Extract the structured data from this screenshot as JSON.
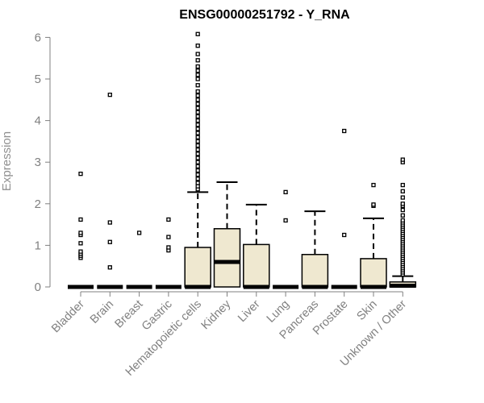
{
  "chart_data": {
    "type": "box",
    "title": "ENSG00000251792 - Y_RNA",
    "xlabel": "",
    "ylabel": "Expression",
    "ylim": [
      0,
      6.1
    ],
    "yticks": [
      0,
      1,
      2,
      3,
      4,
      5,
      6
    ],
    "colors": {
      "box_fill": "#efe8d0",
      "stroke": "#000000",
      "axis": "#808080"
    },
    "categories": [
      "Bladder",
      "Brain",
      "Breast",
      "Gastric",
      "Hematopoietic cells",
      "Kidney",
      "Liver",
      "Lung",
      "Pancreas",
      "Prostate",
      "Skin",
      "Unknown / Other"
    ],
    "boxes": [
      {
        "category": "Bladder",
        "q1": 0,
        "median": 0,
        "q3": 0,
        "whisker_low": 0,
        "whisker_high": 0,
        "outliers": [
          0.7,
          0.75,
          0.8,
          0.85,
          1.05,
          1.25,
          1.3,
          1.62,
          2.72
        ]
      },
      {
        "category": "Brain",
        "q1": 0,
        "median": 0,
        "q3": 0,
        "whisker_low": 0,
        "whisker_high": 0,
        "outliers": [
          0.47,
          1.08,
          1.55,
          4.62
        ]
      },
      {
        "category": "Breast",
        "q1": 0,
        "median": 0,
        "q3": 0,
        "whisker_low": 0,
        "whisker_high": 0,
        "outliers": [
          1.3
        ]
      },
      {
        "category": "Gastric",
        "q1": 0,
        "median": 0,
        "q3": 0,
        "whisker_low": 0,
        "whisker_high": 0,
        "outliers": [
          0.88,
          0.95,
          1.2,
          1.62
        ]
      },
      {
        "category": "Hematopoietic cells",
        "q1": 0,
        "median": 0,
        "q3": 0.95,
        "whisker_low": 0,
        "whisker_high": 2.28,
        "outliers": [
          2.35,
          2.42,
          2.5,
          2.6,
          2.7,
          2.8,
          2.9,
          3.0,
          3.1,
          3.2,
          3.3,
          3.4,
          3.5,
          3.6,
          3.7,
          3.8,
          3.9,
          4.0,
          4.1,
          4.2,
          4.3,
          4.4,
          4.5,
          4.6,
          4.7,
          4.85,
          5.0,
          5.1,
          5.2,
          5.3,
          5.45,
          5.6,
          5.8,
          6.08
        ]
      },
      {
        "category": "Kidney",
        "q1": 0,
        "median": 0.6,
        "q3": 1.4,
        "whisker_low": 0,
        "whisker_high": 2.52,
        "outliers": []
      },
      {
        "category": "Liver",
        "q1": 0,
        "median": 0,
        "q3": 1.02,
        "whisker_low": 0,
        "whisker_high": 1.98,
        "outliers": []
      },
      {
        "category": "Lung",
        "q1": 0,
        "median": 0,
        "q3": 0,
        "whisker_low": 0,
        "whisker_high": 0,
        "outliers": [
          1.6,
          2.28
        ]
      },
      {
        "category": "Pancreas",
        "q1": 0,
        "median": 0,
        "q3": 0.78,
        "whisker_low": 0,
        "whisker_high": 1.82,
        "outliers": []
      },
      {
        "category": "Prostate",
        "q1": 0,
        "median": 0,
        "q3": 0,
        "whisker_low": 0,
        "whisker_high": 0,
        "outliers": [
          1.25,
          3.75
        ]
      },
      {
        "category": "Skin",
        "q1": 0,
        "median": 0,
        "q3": 0.68,
        "whisker_low": 0,
        "whisker_high": 1.65,
        "outliers": [
          1.95,
          1.98,
          2.45
        ]
      },
      {
        "category": "Unknown / Other",
        "q1": 0,
        "median": 0.03,
        "q3": 0.12,
        "whisker_low": 0,
        "whisker_high": 0.26,
        "outliers": [
          0.3,
          0.35,
          0.4,
          0.45,
          0.5,
          0.55,
          0.6,
          0.65,
          0.7,
          0.75,
          0.8,
          0.85,
          0.9,
          0.95,
          1.0,
          1.05,
          1.1,
          1.15,
          1.2,
          1.25,
          1.3,
          1.35,
          1.4,
          1.45,
          1.5,
          1.55,
          1.6,
          1.72,
          1.85,
          1.95,
          2.0,
          2.15,
          2.3,
          2.45,
          3.0,
          3.06
        ]
      }
    ]
  }
}
